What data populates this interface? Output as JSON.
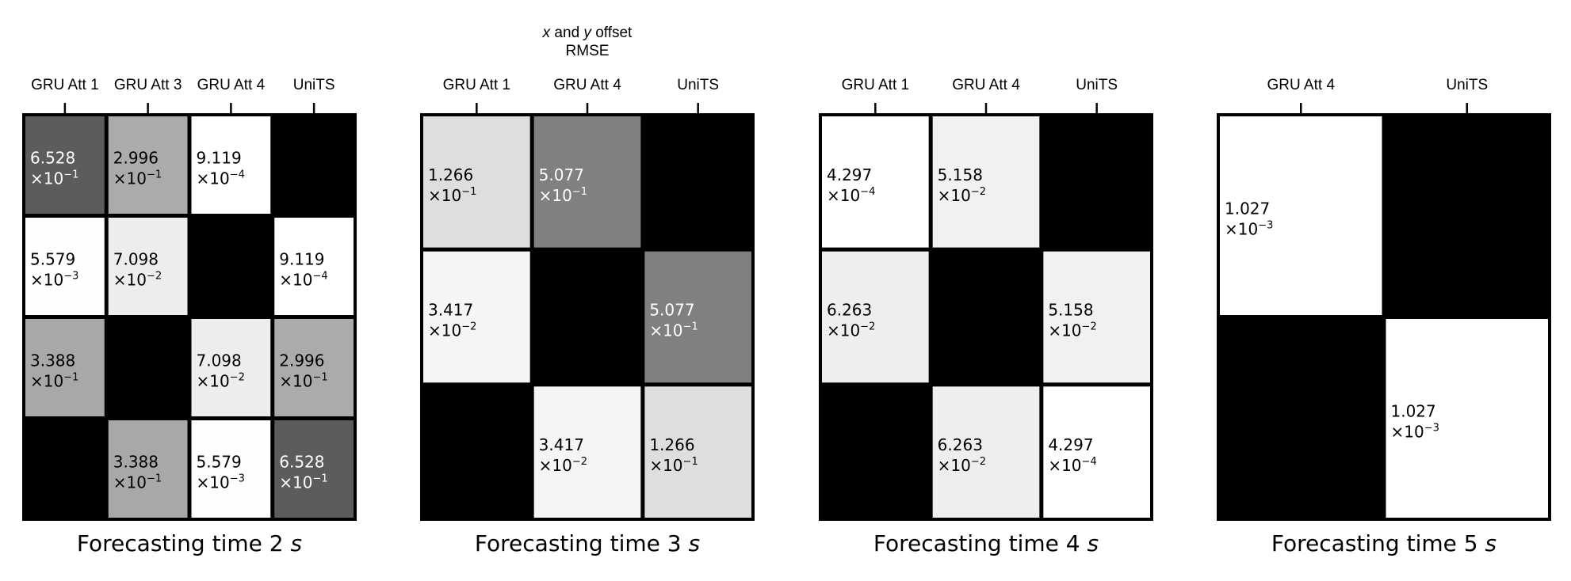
{
  "figure_title": {
    "line1_italic_x": "x",
    "line1_and": " and ",
    "line1_italic_y": "y",
    "line1_rest": " offset",
    "line2": "RMSE"
  },
  "chart_data": [
    {
      "type": "heatmap",
      "title_prefix": "Forecasting time 2 ",
      "title_unit": "s",
      "columns": [
        "GRU Att 1",
        "GRU Att 3",
        "GRU Att 4",
        "UniTS"
      ],
      "rows": [
        "GRU Att 1",
        "GRU Att 3",
        "GRU Att 4",
        "UniTS"
      ],
      "cells": [
        [
          {
            "mant": "6.528",
            "exp": "−1",
            "gray": 0.36
          },
          {
            "mant": "2.996",
            "exp": "−1",
            "gray": 0.67
          },
          {
            "mant": "9.119",
            "exp": "−4",
            "gray": 1.0
          },
          null
        ],
        [
          {
            "mant": "5.579",
            "exp": "−3",
            "gray": 0.995
          },
          {
            "mant": "7.098",
            "exp": "−2",
            "gray": 0.93
          },
          null,
          {
            "mant": "9.119",
            "exp": "−4",
            "gray": 1.0
          }
        ],
        [
          {
            "mant": "3.388",
            "exp": "−1",
            "gray": 0.66
          },
          null,
          {
            "mant": "7.098",
            "exp": "−2",
            "gray": 0.93
          },
          {
            "mant": "2.996",
            "exp": "−1",
            "gray": 0.67
          }
        ],
        [
          null,
          {
            "mant": "3.388",
            "exp": "−1",
            "gray": 0.66
          },
          {
            "mant": "5.579",
            "exp": "−3",
            "gray": 0.995
          },
          {
            "mant": "6.528",
            "exp": "−1",
            "gray": 0.36
          }
        ]
      ]
    },
    {
      "type": "heatmap",
      "title_prefix": "Forecasting time 3 ",
      "title_unit": "s",
      "columns": [
        "GRU Att 1",
        "GRU Att 4",
        "UniTS"
      ],
      "rows": [
        "GRU Att 1",
        "GRU Att 4",
        "UniTS"
      ],
      "cells": [
        [
          {
            "mant": "1.266",
            "exp": "−1",
            "gray": 0.87
          },
          {
            "mant": "5.077",
            "exp": "−1",
            "gray": 0.5
          },
          null
        ],
        [
          {
            "mant": "3.417",
            "exp": "−2",
            "gray": 0.96
          },
          null,
          {
            "mant": "5.077",
            "exp": "−1",
            "gray": 0.5
          }
        ],
        [
          null,
          {
            "mant": "3.417",
            "exp": "−2",
            "gray": 0.96
          },
          {
            "mant": "1.266",
            "exp": "−1",
            "gray": 0.87
          }
        ]
      ]
    },
    {
      "type": "heatmap",
      "title_prefix": "Forecasting time 4 ",
      "title_unit": "s",
      "columns": [
        "GRU Att 1",
        "GRU Att 4",
        "UniTS"
      ],
      "rows": [
        "GRU Att 1",
        "GRU Att 4",
        "UniTS"
      ],
      "cells": [
        [
          {
            "mant": "4.297",
            "exp": "−4",
            "gray": 1.0
          },
          {
            "mant": "5.158",
            "exp": "−2",
            "gray": 0.945
          },
          null
        ],
        [
          {
            "mant": "6.263",
            "exp": "−2",
            "gray": 0.935
          },
          null,
          {
            "mant": "5.158",
            "exp": "−2",
            "gray": 0.945
          }
        ],
        [
          null,
          {
            "mant": "6.263",
            "exp": "−2",
            "gray": 0.935
          },
          {
            "mant": "4.297",
            "exp": "−4",
            "gray": 1.0
          }
        ]
      ]
    },
    {
      "type": "heatmap",
      "title_prefix": "Forecasting time 5 ",
      "title_unit": "s",
      "columns": [
        "GRU Att 4",
        "UniTS"
      ],
      "rows": [
        "GRU Att 4",
        "UniTS"
      ],
      "cells": [
        [
          {
            "mant": "1.027",
            "exp": "−3",
            "gray": 1.0
          },
          null
        ],
        [
          null,
          {
            "mant": "1.027",
            "exp": "−3",
            "gray": 1.0
          }
        ]
      ]
    }
  ]
}
